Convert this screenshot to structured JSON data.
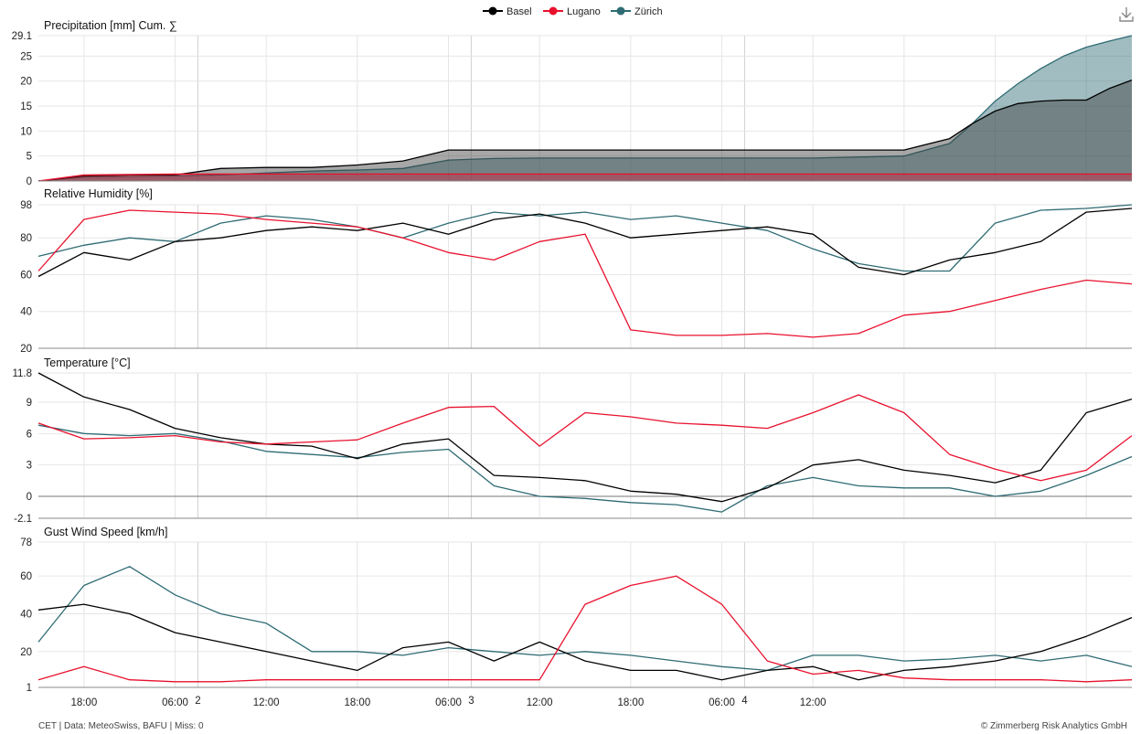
{
  "legend": [
    "Basel",
    "Lugano",
    "Zürich"
  ],
  "colors": {
    "Basel": "#000000",
    "Lugano": "#e8112d",
    "Zürich": "#2e6b73"
  },
  "footer_left": "CET | Data: MeteoSwiss, BAFU | Miss: 0",
  "footer_right": "© Zimmerberg Risk Analytics GmbH",
  "x_ticks": [
    "18:00",
    "2",
    "06:00",
    "12:00",
    "18:00",
    "3",
    "06:00",
    "12:00",
    "18:00",
    "4",
    "06:00",
    "12:00"
  ],
  "chart_data": [
    {
      "type": "area",
      "title": "Precipitation [mm] Cum. ∑",
      "ylim": [
        0,
        29.1
      ],
      "yticks": [
        "29.1",
        "25",
        "20",
        "15",
        "10",
        "5",
        "0"
      ],
      "x": [
        0,
        3,
        6,
        9,
        12,
        15,
        18,
        21,
        24,
        27,
        30,
        33,
        36,
        39,
        42,
        45,
        48,
        51,
        54,
        57,
        60,
        61.5,
        63,
        64.5,
        66,
        67.5,
        69,
        70.5,
        72
      ],
      "series": [
        {
          "name": "Basel",
          "values": [
            0,
            1.0,
            1.2,
            1.2,
            2.5,
            2.7,
            2.7,
            3.2,
            4.0,
            6.2,
            6.2,
            6.2,
            6.2,
            6.2,
            6.2,
            6.2,
            6.2,
            6.2,
            6.2,
            6.2,
            8.5,
            11.5,
            14.0,
            15.5,
            16.0,
            16.2,
            16.2,
            18.5,
            20.2
          ]
        },
        {
          "name": "Lugano",
          "values": [
            0,
            1.2,
            1.3,
            1.4,
            1.4,
            1.4,
            1.4,
            1.4,
            1.4,
            1.4,
            1.4,
            1.4,
            1.4,
            1.4,
            1.4,
            1.4,
            1.4,
            1.4,
            1.4,
            1.4,
            1.4,
            1.4,
            1.4,
            1.4,
            1.4,
            1.4,
            1.4,
            1.4,
            1.4
          ]
        },
        {
          "name": "Zürich",
          "values": [
            0,
            0.8,
            0.9,
            1.0,
            1.2,
            1.6,
            2.0,
            2.2,
            2.5,
            4.2,
            4.5,
            4.6,
            4.6,
            4.6,
            4.6,
            4.6,
            4.6,
            4.6,
            4.8,
            5.0,
            7.5,
            11.5,
            16.0,
            19.5,
            22.5,
            25.0,
            26.8,
            28.0,
            29.1
          ]
        }
      ]
    },
    {
      "type": "line",
      "title": "Relative Humidity [%]",
      "ylim": [
        20,
        98
      ],
      "yticks": [
        "98",
        "80",
        "60",
        "40",
        "20"
      ],
      "x": [
        0,
        3,
        6,
        9,
        12,
        15,
        18,
        21,
        24,
        27,
        30,
        33,
        36,
        39,
        42,
        45,
        48,
        51,
        54,
        57,
        60,
        63,
        66,
        69,
        72
      ],
      "series": [
        {
          "name": "Basel",
          "values": [
            59,
            72,
            68,
            78,
            80,
            84,
            86,
            84,
            88,
            82,
            90,
            93,
            88,
            80,
            82,
            84,
            86,
            82,
            64,
            60,
            68,
            72,
            78,
            94,
            96
          ]
        },
        {
          "name": "Lugano",
          "values": [
            62,
            90,
            95,
            94,
            93,
            90,
            88,
            86,
            80,
            72,
            68,
            78,
            82,
            30,
            27,
            27,
            28,
            26,
            28,
            38,
            40,
            46,
            52,
            57,
            55
          ]
        },
        {
          "name": "Zürich",
          "values": [
            70,
            76,
            80,
            78,
            88,
            92,
            90,
            86,
            80,
            88,
            94,
            92,
            94,
            90,
            92,
            88,
            84,
            74,
            66,
            62,
            62,
            88,
            95,
            96,
            98
          ]
        }
      ]
    },
    {
      "type": "line",
      "title": "Temperature [°C]",
      "ylim": [
        -2.1,
        11.8
      ],
      "yticks": [
        "11.8",
        "9",
        "6",
        "3",
        "0",
        "-2.1"
      ],
      "x": [
        0,
        3,
        6,
        9,
        12,
        15,
        18,
        21,
        24,
        27,
        30,
        33,
        36,
        39,
        42,
        45,
        48,
        51,
        54,
        57,
        60,
        63,
        66,
        69,
        72
      ],
      "series": [
        {
          "name": "Basel",
          "values": [
            11.8,
            9.5,
            8.3,
            6.5,
            5.6,
            5.0,
            4.8,
            3.6,
            5.0,
            5.5,
            2.0,
            1.8,
            1.5,
            0.5,
            0.2,
            -0.5,
            0.8,
            3.0,
            3.5,
            2.5,
            2.0,
            1.3,
            2.5,
            8.0,
            9.3
          ]
        },
        {
          "name": "Lugano",
          "values": [
            7.0,
            5.5,
            5.6,
            5.8,
            5.2,
            5.0,
            5.2,
            5.4,
            7.0,
            8.5,
            8.6,
            4.8,
            8.0,
            7.6,
            7.0,
            6.8,
            6.5,
            8.0,
            9.7,
            8.0,
            4.0,
            2.6,
            1.5,
            2.5,
            5.8
          ]
        },
        {
          "name": "Zürich",
          "values": [
            6.8,
            6.0,
            5.8,
            6.0,
            5.3,
            4.3,
            4.0,
            3.7,
            4.2,
            4.5,
            1.0,
            0.0,
            -0.2,
            -0.6,
            -0.8,
            -1.5,
            1.0,
            1.8,
            1.0,
            0.8,
            0.8,
            0.0,
            0.5,
            2.0,
            3.8
          ]
        }
      ]
    },
    {
      "type": "line",
      "title": "Gust Wind Speed [km/h]",
      "ylim": [
        1,
        78
      ],
      "yticks": [
        "78",
        "60",
        "40",
        "20",
        "1"
      ],
      "x": [
        0,
        3,
        6,
        9,
        12,
        15,
        18,
        21,
        24,
        27,
        30,
        33,
        36,
        39,
        42,
        45,
        48,
        51,
        54,
        57,
        60,
        63,
        66,
        69,
        72
      ],
      "series": [
        {
          "name": "Basel",
          "values": [
            42,
            45,
            40,
            30,
            25,
            20,
            15,
            10,
            22,
            25,
            15,
            25,
            15,
            10,
            10,
            5,
            10,
            12,
            5,
            10,
            12,
            15,
            20,
            28,
            38
          ]
        },
        {
          "name": "Lugano",
          "values": [
            5,
            12,
            5,
            4,
            4,
            5,
            5,
            5,
            5,
            5,
            5,
            5,
            45,
            55,
            60,
            45,
            15,
            8,
            10,
            6,
            5,
            5,
            5,
            4,
            5
          ]
        },
        {
          "name": "Zürich",
          "values": [
            25,
            55,
            65,
            50,
            40,
            35,
            20,
            20,
            18,
            22,
            20,
            18,
            20,
            18,
            15,
            12,
            10,
            18,
            18,
            15,
            16,
            18,
            15,
            18,
            12
          ]
        }
      ]
    }
  ]
}
